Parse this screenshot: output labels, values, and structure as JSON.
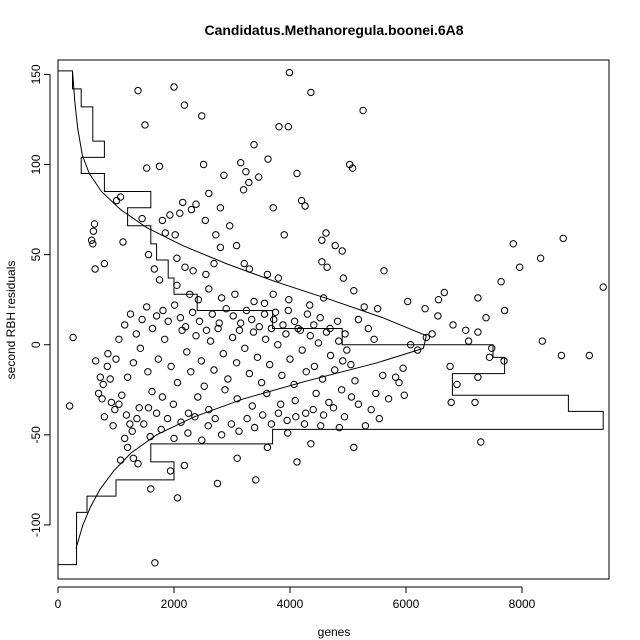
{
  "chart_data": {
    "type": "scatter",
    "title": "Candidatus.Methanoregula.boonei.6A8",
    "xlabel": "genes",
    "ylabel": "second RBH residuals",
    "xlim": [
      0,
      9500
    ],
    "ylim": [
      -130,
      158
    ],
    "xticks": [
      0,
      2000,
      4000,
      6000,
      8000
    ],
    "yticks": [
      -100,
      -50,
      0,
      50,
      100,
      150
    ],
    "grid": false,
    "legend": "none",
    "point_style": "open-circle",
    "color": "#000000",
    "points": [
      [
        200,
        -34
      ],
      [
        260,
        4
      ],
      [
        3990,
        151
      ],
      [
        2000,
        143
      ],
      [
        1380,
        141
      ],
      [
        4360,
        140
      ],
      [
        2180,
        133
      ],
      [
        5260,
        130
      ],
      [
        1500,
        122
      ],
      [
        2480,
        127
      ],
      [
        3810,
        121
      ],
      [
        3970,
        121
      ],
      [
        3380,
        111
      ],
      [
        3620,
        103
      ],
      [
        3150,
        101
      ],
      [
        5030,
        100
      ],
      [
        5080,
        98
      ],
      [
        1750,
        99
      ],
      [
        1530,
        98
      ],
      [
        4120,
        95
      ],
      [
        4200,
        80
      ],
      [
        3240,
        96
      ],
      [
        2510,
        100
      ],
      [
        2860,
        94
      ],
      [
        3460,
        93
      ],
      [
        3290,
        90
      ],
      [
        3200,
        86
      ],
      [
        2600,
        84
      ],
      [
        2800,
        76
      ],
      [
        2150,
        79
      ],
      [
        2380,
        78
      ],
      [
        2300,
        75
      ],
      [
        2100,
        73
      ],
      [
        1930,
        72
      ],
      [
        1800,
        69
      ],
      [
        1850,
        62
      ],
      [
        2020,
        61
      ],
      [
        2540,
        69
      ],
      [
        2720,
        61
      ],
      [
        2960,
        66
      ],
      [
        3710,
        76
      ],
      [
        3900,
        61
      ],
      [
        4260,
        77
      ],
      [
        4550,
        58
      ],
      [
        4620,
        62
      ],
      [
        4780,
        55
      ],
      [
        4900,
        52
      ],
      [
        1080,
        82
      ],
      [
        1010,
        80
      ],
      [
        630,
        67
      ],
      [
        610,
        63
      ],
      [
        580,
        58
      ],
      [
        600,
        56
      ],
      [
        640,
        42
      ],
      [
        800,
        45
      ],
      [
        1120,
        57
      ],
      [
        2800,
        54
      ],
      [
        3080,
        55
      ],
      [
        3210,
        45
      ],
      [
        3300,
        42
      ],
      [
        3610,
        39
      ],
      [
        3800,
        37
      ],
      [
        4550,
        46
      ],
      [
        4640,
        43
      ],
      [
        4920,
        37
      ],
      [
        5100,
        30
      ],
      [
        5620,
        41
      ],
      [
        2050,
        48
      ],
      [
        2190,
        43
      ],
      [
        2330,
        41
      ],
      [
        2550,
        39
      ],
      [
        2690,
        45
      ],
      [
        1660,
        42
      ],
      [
        1750,
        36
      ],
      [
        2050,
        33
      ],
      [
        2270,
        28
      ],
      [
        2420,
        25
      ],
      [
        2600,
        31
      ],
      [
        2820,
        26
      ],
      [
        3050,
        28
      ],
      [
        3380,
        24
      ],
      [
        3560,
        23
      ],
      [
        3710,
        28
      ],
      [
        3980,
        25
      ],
      [
        4340,
        22
      ],
      [
        4580,
        26
      ],
      [
        5280,
        21
      ],
      [
        5510,
        20
      ],
      [
        6030,
        24
      ],
      [
        6330,
        20
      ],
      [
        6560,
        25
      ],
      [
        6660,
        29
      ],
      [
        7240,
        26
      ],
      [
        7640,
        35
      ],
      [
        7700,
        19
      ],
      [
        7380,
        15
      ],
      [
        7850,
        56
      ],
      [
        7960,
        43
      ],
      [
        8320,
        48
      ],
      [
        8710,
        59
      ],
      [
        9400,
        32
      ],
      [
        8350,
        2
      ],
      [
        8680,
        -6
      ],
      [
        9160,
        -6
      ],
      [
        6780,
        -32
      ],
      [
        7190,
        -32
      ],
      [
        7480,
        -2
      ],
      [
        7290,
        -54
      ],
      [
        6880,
        -22
      ],
      [
        7240,
        -18
      ],
      [
        7440,
        -7
      ],
      [
        7690,
        -9
      ],
      [
        7080,
        2
      ],
      [
        6810,
        11
      ],
      [
        7030,
        8
      ],
      [
        7240,
        7
      ],
      [
        6550,
        16
      ],
      [
        6450,
        6
      ],
      [
        6350,
        4
      ],
      [
        6200,
        -3
      ],
      [
        6080,
        0
      ],
      [
        5950,
        -13
      ],
      [
        5880,
        -21
      ],
      [
        5970,
        -28
      ],
      [
        5820,
        -18
      ],
      [
        5600,
        -17
      ],
      [
        5480,
        -27
      ],
      [
        5540,
        -41
      ],
      [
        5300,
        -45
      ],
      [
        5100,
        -57
      ],
      [
        4850,
        -46
      ],
      [
        4530,
        -45
      ],
      [
        4120,
        -65
      ],
      [
        4360,
        -55
      ],
      [
        3960,
        -49
      ],
      [
        3610,
        -57
      ],
      [
        3410,
        -75
      ],
      [
        3090,
        -63
      ],
      [
        2750,
        -77
      ],
      [
        2180,
        -67
      ],
      [
        1940,
        -70
      ],
      [
        1600,
        -80
      ],
      [
        2060,
        -85
      ],
      [
        1670,
        -121
      ],
      [
        1380,
        -66
      ],
      [
        1300,
        -63
      ],
      [
        1200,
        -57
      ],
      [
        1080,
        -64
      ],
      [
        1150,
        -52
      ],
      [
        1240,
        -44
      ],
      [
        1360,
        -41
      ],
      [
        1560,
        -35
      ],
      [
        1800,
        -29
      ],
      [
        1990,
        -33
      ],
      [
        2250,
        -38
      ],
      [
        2410,
        -29
      ],
      [
        2600,
        -36
      ],
      [
        2880,
        -25
      ],
      [
        3090,
        -30
      ],
      [
        3350,
        -34
      ],
      [
        3600,
        -27
      ],
      [
        3840,
        -33
      ],
      [
        4090,
        -31
      ],
      [
        4270,
        -38
      ],
      [
        4450,
        -27
      ],
      [
        4670,
        -32
      ],
      [
        4890,
        -25
      ],
      [
        5060,
        -29
      ],
      [
        850,
        -12
      ],
      [
        900,
        -19
      ],
      [
        780,
        -22
      ],
      [
        700,
        -27
      ],
      [
        650,
        -9
      ],
      [
        730,
        -18
      ],
      [
        860,
        -5
      ],
      [
        920,
        -32
      ],
      [
        760,
        -30
      ],
      [
        980,
        -36
      ],
      [
        1100,
        -28
      ],
      [
        1200,
        -18
      ],
      [
        1300,
        -10
      ],
      [
        1420,
        -2
      ],
      [
        1550,
        -15
      ],
      [
        1620,
        -26
      ],
      [
        1730,
        -8
      ],
      [
        1840,
        3
      ],
      [
        1950,
        -12
      ],
      [
        2060,
        -21
      ],
      [
        2140,
        8
      ],
      [
        2220,
        -4
      ],
      [
        2290,
        -15
      ],
      [
        2380,
        5
      ],
      [
        2470,
        -9
      ],
      [
        2520,
        -23
      ],
      [
        2630,
        2
      ],
      [
        2690,
        -14
      ],
      [
        2760,
        9
      ],
      [
        2850,
        -5
      ],
      [
        2930,
        -19
      ],
      [
        3010,
        4
      ],
      [
        3080,
        -10
      ],
      [
        3150,
        12
      ],
      [
        3220,
        -2
      ],
      [
        3300,
        -16
      ],
      [
        3370,
        7
      ],
      [
        3440,
        -7
      ],
      [
        3510,
        -21
      ],
      [
        3580,
        3
      ],
      [
        3650,
        -11
      ],
      [
        3720,
        14
      ],
      [
        3790,
        0
      ],
      [
        3860,
        -17
      ],
      [
        3930,
        6
      ],
      [
        4000,
        -8
      ],
      [
        4070,
        -22
      ],
      [
        4140,
        9
      ],
      [
        4210,
        -3
      ],
      [
        4280,
        -15
      ],
      [
        4350,
        5
      ],
      [
        4420,
        -12
      ],
      [
        4490,
        1
      ],
      [
        4560,
        -19
      ],
      [
        4630,
        7
      ],
      [
        4700,
        -6
      ],
      [
        4770,
        -14
      ],
      [
        4840,
        2
      ],
      [
        4910,
        -9
      ],
      [
        4980,
        -3
      ],
      [
        5050,
        -11
      ],
      [
        5120,
        -20
      ],
      [
        1050,
        3
      ],
      [
        1150,
        11
      ],
      [
        1250,
        17
      ],
      [
        1350,
        6
      ],
      [
        1450,
        14
      ],
      [
        1530,
        21
      ],
      [
        1630,
        9
      ],
      [
        1700,
        16
      ],
      [
        1810,
        19
      ],
      [
        1900,
        13
      ],
      [
        2010,
        22
      ],
      [
        2110,
        15
      ],
      [
        2200,
        10
      ],
      [
        2320,
        18
      ],
      [
        2440,
        13
      ],
      [
        2560,
        8
      ],
      [
        2660,
        17
      ],
      [
        2780,
        12
      ],
      [
        2900,
        20
      ],
      [
        3020,
        16
      ],
      [
        3130,
        8
      ],
      [
        3250,
        19
      ],
      [
        3340,
        14
      ],
      [
        3470,
        10
      ],
      [
        3560,
        17
      ],
      [
        3680,
        9
      ],
      [
        3750,
        18
      ],
      [
        3880,
        11
      ],
      [
        3970,
        19
      ],
      [
        4080,
        13
      ],
      [
        4180,
        8
      ],
      [
        4300,
        17
      ],
      [
        4410,
        11
      ],
      [
        4520,
        15
      ],
      [
        4690,
        9
      ],
      [
        4820,
        13
      ],
      [
        4950,
        6
      ],
      [
        5180,
        14
      ],
      [
        5350,
        9
      ],
      [
        5450,
        3
      ],
      [
        800,
        -40
      ],
      [
        950,
        -45
      ],
      [
        1050,
        -33
      ],
      [
        1180,
        -39
      ],
      [
        1280,
        -48
      ],
      [
        1400,
        -35
      ],
      [
        1480,
        -44
      ],
      [
        1590,
        -51
      ],
      [
        1700,
        -38
      ],
      [
        1780,
        -47
      ],
      [
        1890,
        -41
      ],
      [
        2000,
        -52
      ],
      [
        2120,
        -43
      ],
      [
        2240,
        -49
      ],
      [
        2360,
        -40
      ],
      [
        2480,
        -53
      ],
      [
        2590,
        -45
      ],
      [
        2710,
        -41
      ],
      [
        2820,
        -50
      ],
      [
        2990,
        -44
      ],
      [
        3120,
        -48
      ],
      [
        3260,
        -41
      ],
      [
        3390,
        -46
      ],
      [
        3530,
        -39
      ],
      [
        3680,
        -44
      ],
      [
        3800,
        -38
      ],
      [
        3950,
        -42
      ],
      [
        4100,
        -40
      ],
      [
        4250,
        -44
      ],
      [
        4400,
        -36
      ],
      [
        4580,
        -39
      ],
      [
        4750,
        -35
      ],
      [
        4940,
        -40
      ],
      [
        5180,
        -33
      ],
      [
        5400,
        -36
      ],
      [
        5700,
        -30
      ],
      [
        6760,
        -12
      ],
      [
        1450,
        70
      ],
      [
        1560,
        50
      ],
      [
        1000,
        -8
      ]
    ]
  },
  "density_curve": [
    [
      -113,
      310
    ],
    [
      -100,
      430
    ],
    [
      -90,
      560
    ],
    [
      -80,
      730
    ],
    [
      -70,
      960
    ],
    [
      -60,
      1260
    ],
    [
      -50,
      1700
    ],
    [
      -40,
      2350
    ],
    [
      -30,
      3200
    ],
    [
      -20,
      4300
    ],
    [
      -10,
      5500
    ],
    [
      -2,
      6300
    ],
    [
      5,
      6350
    ],
    [
      15,
      5600
    ],
    [
      25,
      4700
    ],
    [
      35,
      3750
    ],
    [
      45,
      2900
    ],
    [
      55,
      2150
    ],
    [
      65,
      1530
    ],
    [
      75,
      1080
    ],
    [
      85,
      750
    ],
    [
      95,
      540
    ],
    [
      105,
      420
    ],
    [
      120,
      340
    ],
    [
      135,
      290
    ],
    [
      152,
      250
    ]
  ],
  "histogram": [
    [
      -122,
      -113,
      320
    ],
    [
      -113,
      -93,
      320
    ],
    [
      -93,
      -84,
      500
    ],
    [
      -84,
      -75,
      1000
    ],
    [
      -75,
      -65,
      2000
    ],
    [
      -65,
      -55,
      1600
    ],
    [
      -55,
      -47,
      3700
    ],
    [
      -47,
      -37,
      9400
    ],
    [
      -37,
      -28,
      8800
    ],
    [
      -28,
      -16,
      6800
    ],
    [
      -16,
      -7,
      7700
    ],
    [
      -7,
      0,
      7500
    ],
    [
      0,
      9,
      4900
    ],
    [
      9,
      19,
      3700
    ],
    [
      19,
      28,
      2400
    ],
    [
      28,
      37,
      2000
    ],
    [
      37,
      47,
      1900
    ],
    [
      47,
      56,
      1700
    ],
    [
      56,
      66,
      1600
    ],
    [
      66,
      76,
      1200
    ],
    [
      76,
      85,
      1600
    ],
    [
      85,
      95,
      800
    ],
    [
      95,
      104,
      400
    ],
    [
      104,
      113,
      800
    ],
    [
      113,
      122,
      600
    ],
    [
      122,
      132,
      600
    ],
    [
      132,
      142,
      400
    ],
    [
      142,
      152,
      250
    ]
  ]
}
